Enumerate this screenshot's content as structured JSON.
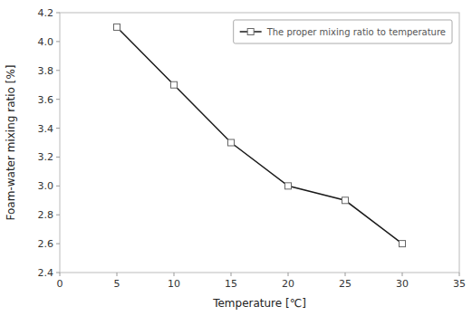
{
  "chart_data": {
    "type": "line",
    "x": [
      5,
      10,
      15,
      20,
      25,
      30
    ],
    "series": [
      {
        "name": "The proper mixing ratio to temperature",
        "color": "#1a1a1a",
        "marker": "square",
        "values": [
          4.1,
          3.7,
          3.3,
          3.0,
          2.9,
          2.6
        ]
      }
    ],
    "xlim": [
      0,
      35
    ],
    "ylim": [
      2.4,
      4.2
    ],
    "xticks": [
      0,
      5,
      10,
      15,
      20,
      25,
      30,
      35
    ],
    "yticks": [
      2.4,
      2.6,
      2.8,
      {
        "value": 3.0,
        "label": "3.0"
      },
      3.2,
      3.4,
      3.6,
      3.8,
      {
        "value": 4.0,
        "label": "4.0"
      },
      4.2
    ],
    "xlabel": "Temperature [℃]",
    "ylabel": "Foam-water mixing ratio [%]",
    "legend": "upper right",
    "grid": false
  }
}
